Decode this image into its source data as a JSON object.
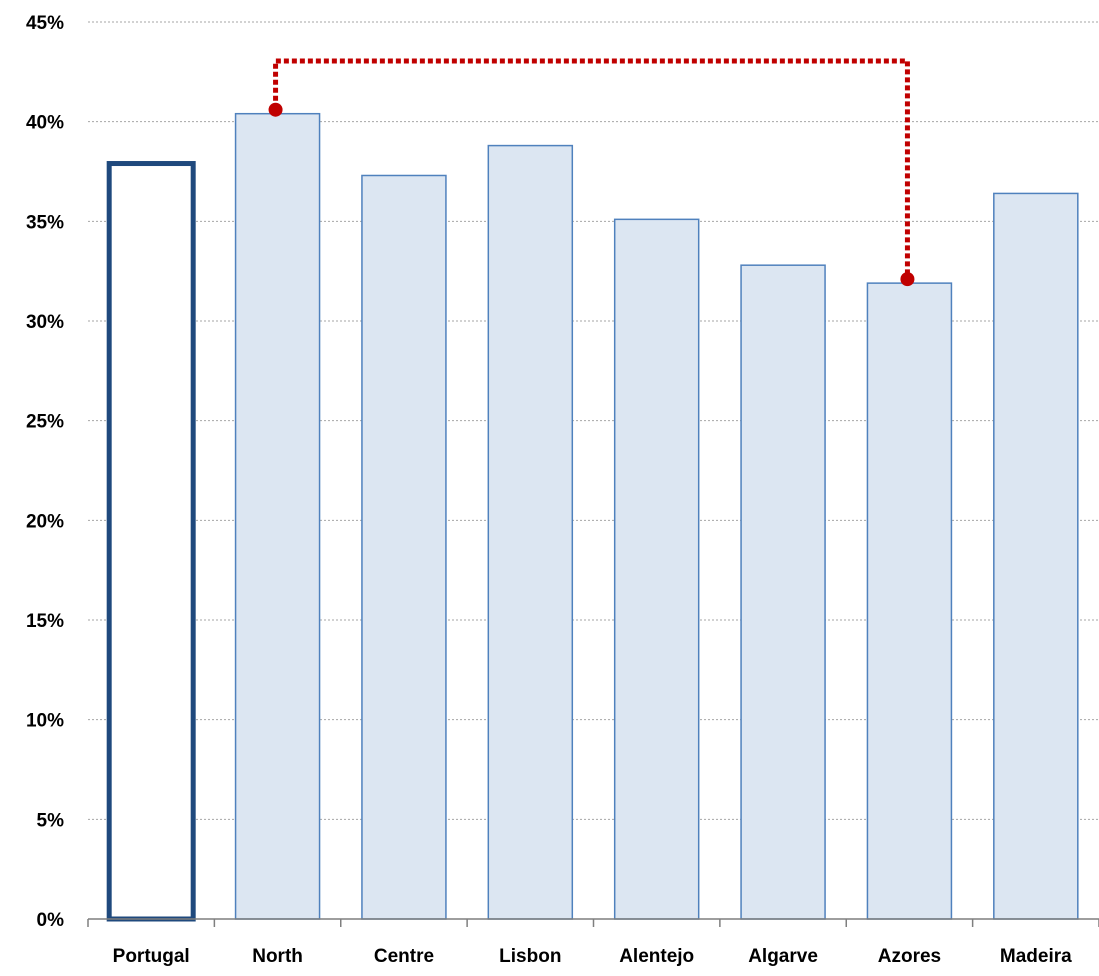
{
  "chart_data": {
    "type": "bar",
    "categories": [
      "Portugal",
      "North",
      "Centre",
      "Lisbon",
      "Alentejo",
      "Algarve",
      "Azores",
      "Madeira"
    ],
    "values": [
      37.9,
      40.4,
      37.3,
      38.8,
      35.1,
      32.8,
      31.9,
      36.4
    ],
    "ylim": [
      0,
      45
    ],
    "yticks": [
      "0%",
      "5%",
      "10%",
      "15%",
      "20%",
      "25%",
      "30%",
      "35%",
      "40%",
      "45%"
    ],
    "grid": true,
    "highlighted_category": "Portugal",
    "range_annotation": {
      "from": "North",
      "to": "Azores"
    },
    "colors": {
      "bar_fill": "#dce6f2",
      "bar_stroke": "#4f81bd",
      "highlight_stroke": "#1f497d",
      "annotation": "#c00000",
      "grid": "#a6a6a6",
      "axis": "#7f7f7f"
    }
  }
}
